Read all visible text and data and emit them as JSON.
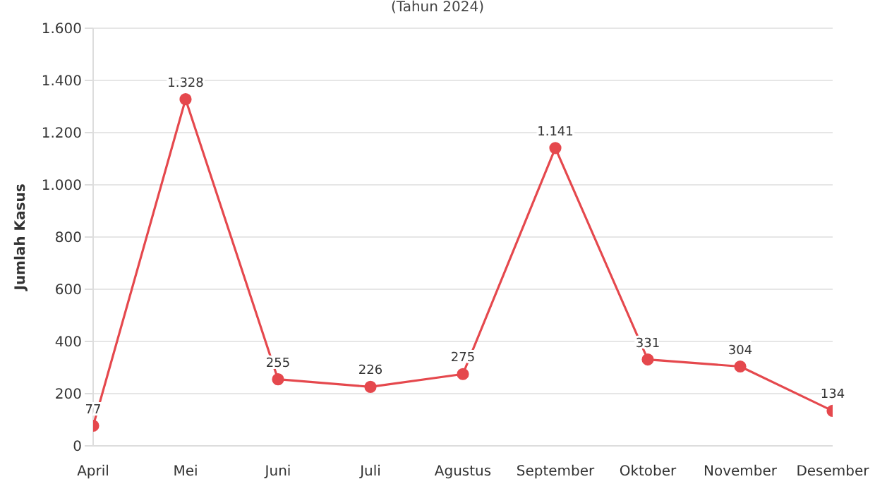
{
  "chart_data": {
    "type": "line",
    "subtitle": "(Tahun 2024)",
    "ylabel": "Jumlah Kasus",
    "categories": [
      "April",
      "Mei",
      "Juni",
      "Juli",
      "Agustus",
      "September",
      "Oktober",
      "November",
      "Desember"
    ],
    "series": [
      {
        "color": "#e5484d",
        "values": [
          77,
          1328,
          255,
          226,
          275,
          1141,
          331,
          304,
          134
        ]
      }
    ],
    "value_labels": [
      "77",
      "1.328",
      "255",
      "226",
      "275",
      "1.141",
      "331",
      "304",
      "134"
    ],
    "ylim": [
      0,
      1600
    ],
    "yticks": [
      0,
      {
        "value": 200,
        "label": "200"
      },
      {
        "value": 400,
        "label": "400"
      },
      {
        "value": 600,
        "label": "600"
      },
      {
        "value": 800,
        "label": "800"
      },
      {
        "value": 1000,
        "label": "1.000"
      },
      {
        "value": 1200,
        "label": "1.200"
      },
      {
        "value": 1400,
        "label": "1.400"
      },
      {
        "value": 1600,
        "label": "1.600"
      }
    ],
    "grid": "y",
    "marker": "circle",
    "line_style": "solid",
    "legend": false
  }
}
